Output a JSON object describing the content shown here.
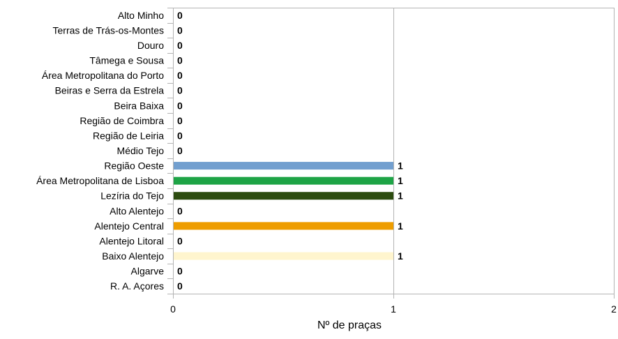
{
  "chart_data": {
    "type": "bar",
    "orientation": "horizontal",
    "title": "",
    "xlabel": "Nº de praças",
    "ylabel": "",
    "xlim": [
      0,
      2
    ],
    "x_ticks": [
      0,
      1,
      2
    ],
    "grid": true,
    "legend": "none",
    "categories": [
      "Alto Minho",
      "Terras de Trás-os-Montes",
      "Douro",
      "Tâmega e Sousa",
      "Área Metropolitana do Porto",
      "Beiras e Serra da Estrela",
      "Beira Baixa",
      "Região de Coimbra",
      "Região de Leiria",
      "Médio Tejo",
      "Região Oeste",
      "Área Metropolitana de Lisboa",
      "Lezíria do Tejo",
      "Alto Alentejo",
      "Alentejo Central",
      "Alentejo Litoral",
      "Baixo Alentejo",
      "Algarve",
      "R. A. Açores"
    ],
    "values": [
      0,
      0,
      0,
      0,
      0,
      0,
      0,
      0,
      0,
      0,
      1,
      1,
      1,
      0,
      1,
      0,
      1,
      0,
      0
    ],
    "data_labels": [
      "0",
      "0",
      "0",
      "0",
      "0",
      "0",
      "0",
      "0",
      "0",
      "0",
      "1",
      "1",
      "1",
      "0",
      "1",
      "0",
      "1",
      "0",
      "0"
    ],
    "bar_colors": [
      "#4a7ebb",
      "#4a7ebb",
      "#4a7ebb",
      "#4a7ebb",
      "#4a7ebb",
      "#4a7ebb",
      "#4a7ebb",
      "#4a7ebb",
      "#4a7ebb",
      "#4a7ebb",
      "#729fcf",
      "#1ea446",
      "#2d4c10",
      "#4a7ebb",
      "#ee9d00",
      "#4a7ebb",
      "#fff5ce",
      "#4a7ebb",
      "#4a7ebb"
    ],
    "colors": {
      "grid": "#b3b3b3",
      "axis": "#b3b3b3",
      "text": "#000000"
    }
  }
}
